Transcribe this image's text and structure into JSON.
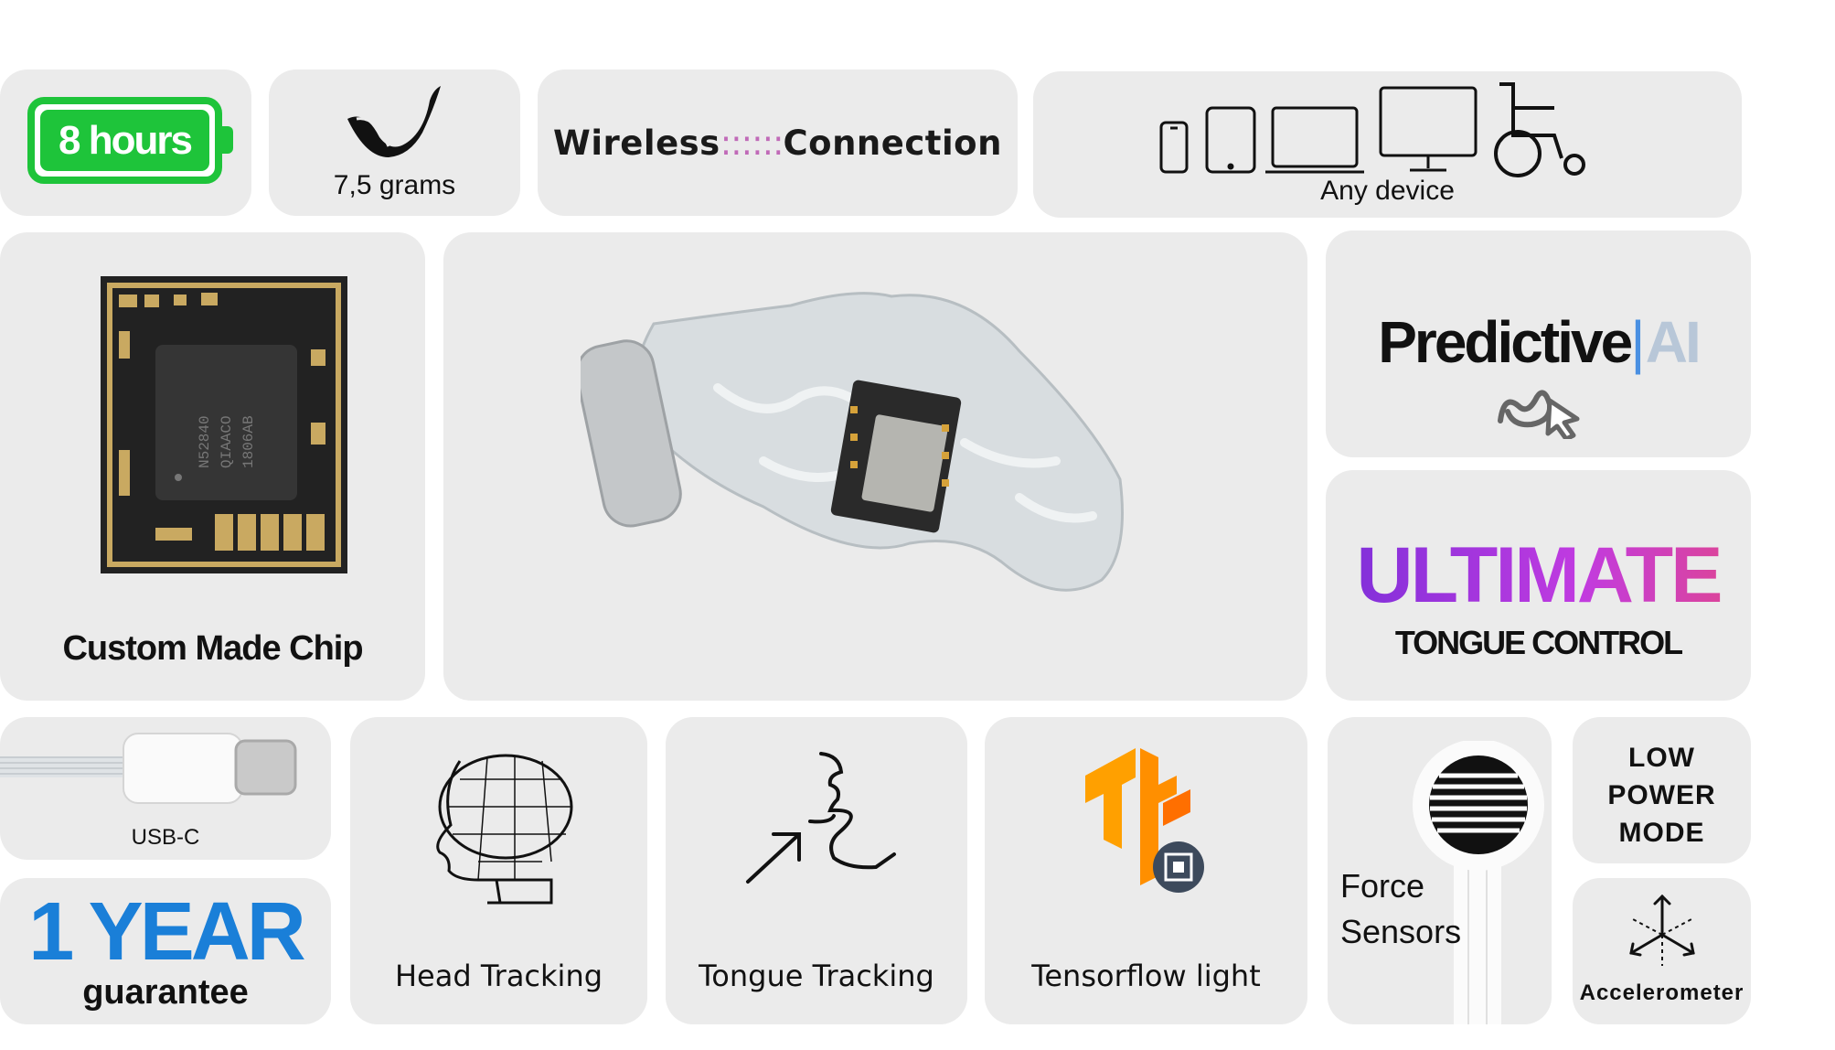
{
  "battery": {
    "label": "8 hours"
  },
  "weight": {
    "label": "7,5 grams"
  },
  "wireless": {
    "left": "Wireless",
    "dots": "::::::",
    "right": "Connection"
  },
  "devices": {
    "label": "Any device"
  },
  "chip": {
    "label": "Custom Made Chip",
    "markings": [
      "N52840",
      "QIAACO",
      "1806AB"
    ]
  },
  "predictive": {
    "word": "Predictive",
    "separator": "|",
    "ai": "AI"
  },
  "ultimate": {
    "title": "ULTIMATE",
    "subtitle": "TONGUE CONTROL"
  },
  "usb": {
    "label": "USB-C"
  },
  "guarantee": {
    "big": "1 YEAR",
    "small": "guarantee"
  },
  "head_tracking": {
    "label": "Head Tracking"
  },
  "tongue_tracking": {
    "label": "Tongue Tracking"
  },
  "tensorflow": {
    "label": "Tensorflow light"
  },
  "force": {
    "label": "Force Sensors"
  },
  "low_power": {
    "label": "LOW\nPOWER\nMODE"
  },
  "accelerometer": {
    "label": "Accelerometer"
  },
  "colors": {
    "battery": "#1ec43a",
    "guarantee": "#1a7fd8",
    "ultimate_start": "#7b2fd9",
    "ultimate_end": "#e0468e",
    "tensorflow": "#ff8f00",
    "tile": "#ebebeb"
  }
}
